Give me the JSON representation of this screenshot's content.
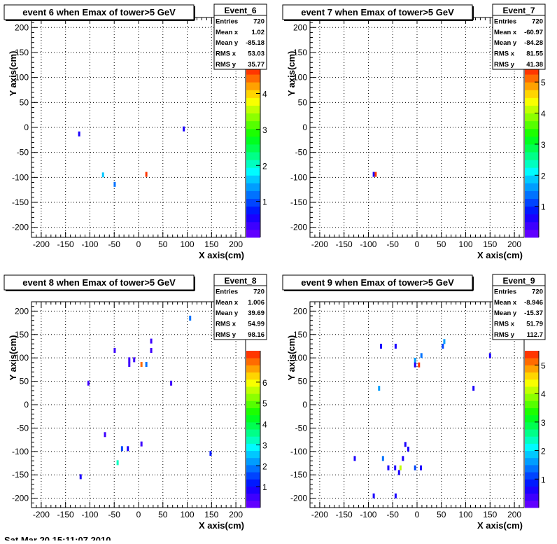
{
  "page": {
    "footer_text": "Sat Mar 20 15:11:07 2010"
  },
  "palette": [
    "#6100ff",
    "#3d00ff",
    "#1a00ff",
    "#0019ff",
    "#0044ff",
    "#0072ff",
    "#009dff",
    "#00c8ff",
    "#00fbff",
    "#00ffc0",
    "#00ff88",
    "#00ff50",
    "#00ff20",
    "#1cff00",
    "#55ff00",
    "#8cff00",
    "#c1ff00",
    "#f8ff00",
    "#ffd500",
    "#ffa100",
    "#ff6b00",
    "#ff3600"
  ],
  "chart_data": [
    {
      "type": "heatmap",
      "title": "event 6 when Emax of tower>5 GeV",
      "xlabel": "X axis(cm)",
      "ylabel": "Y axis(cm)",
      "xlim": [
        -220,
        220
      ],
      "ylim": [
        -220,
        220
      ],
      "x_ticks": [
        -200,
        -150,
        -100,
        -50,
        0,
        50,
        100,
        150,
        200
      ],
      "y_ticks": [
        -200,
        -150,
        -100,
        -50,
        0,
        50,
        100,
        150,
        200
      ],
      "grid": true,
      "zlim": [
        0,
        4.75
      ],
      "z_ticks": [
        1,
        2,
        3,
        4
      ],
      "stats": {
        "name": "Event_6",
        "rows": [
          {
            "label": "Entries",
            "value": "720"
          },
          {
            "label": "Mean x",
            "value": "1.02"
          },
          {
            "label": "Mean y",
            "value": "-85.18"
          },
          {
            "label": "RMS x",
            "value": "53.03"
          },
          {
            "label": "RMS y",
            "value": "35.77"
          }
        ]
      },
      "cells": [
        {
          "x": -122,
          "y": -13,
          "z": 0.5
        },
        {
          "x": -73,
          "y": -95,
          "z": 1.7
        },
        {
          "x": -49,
          "y": -114,
          "z": 1.1
        },
        {
          "x": 16,
          "y": -94,
          "z": 4.6
        },
        {
          "x": 93,
          "y": -3,
          "z": 0.5
        }
      ]
    },
    {
      "type": "heatmap",
      "title": "event 7 when Emax of tower>5 GeV",
      "xlabel": "X axis(cm)",
      "ylabel": "Y axis(cm)",
      "xlim": [
        -220,
        220
      ],
      "ylim": [
        -220,
        220
      ],
      "x_ticks": [
        -200,
        -150,
        -100,
        -50,
        0,
        50,
        100,
        150,
        200
      ],
      "y_ticks": [
        -200,
        -150,
        -100,
        -50,
        0,
        50,
        100,
        150,
        200
      ],
      "grid": true,
      "zlim": [
        0,
        5.5
      ],
      "z_ticks": [
        1,
        2,
        3,
        4,
        5
      ],
      "stats": {
        "name": "Event_7",
        "rows": [
          {
            "label": "Entries",
            "value": "720"
          },
          {
            "label": "Mean x",
            "value": "-60.97"
          },
          {
            "label": "Mean y",
            "value": "-84.28"
          },
          {
            "label": "RMS x",
            "value": "81.55"
          },
          {
            "label": "RMS y",
            "value": "41.38"
          }
        ]
      },
      "cells": [
        {
          "x": -89,
          "y": -94,
          "z": 0.5
        },
        {
          "x": -85,
          "y": -94,
          "z": 5.3
        }
      ]
    },
    {
      "type": "heatmap",
      "title": "event 8 when Emax of tower>5 GeV",
      "xlabel": "X axis(cm)",
      "ylabel": "Y axis(cm)",
      "xlim": [
        -220,
        220
      ],
      "ylim": [
        -220,
        220
      ],
      "x_ticks": [
        -200,
        -150,
        -100,
        -50,
        0,
        50,
        100,
        150,
        200
      ],
      "y_ticks": [
        -200,
        -150,
        -100,
        -50,
        0,
        50,
        100,
        150,
        200
      ],
      "grid": true,
      "zlim": [
        0,
        7.5
      ],
      "z_ticks": [
        1,
        2,
        3,
        4,
        5,
        6
      ],
      "stats": {
        "name": "Event_8",
        "rows": [
          {
            "label": "Entries",
            "value": "720"
          },
          {
            "label": "Mean x",
            "value": "1.006"
          },
          {
            "label": "Mean y",
            "value": "39.69"
          },
          {
            "label": "RMS x",
            "value": "54.99"
          },
          {
            "label": "RMS y",
            "value": "98.16"
          }
        ]
      },
      "cells": [
        {
          "x": 106,
          "y": 185,
          "z": 2.0
        },
        {
          "x": -49,
          "y": 116,
          "z": 0.5
        },
        {
          "x": 26,
          "y": 116,
          "z": 0.5
        },
        {
          "x": 26,
          "y": 136,
          "z": 0.5
        },
        {
          "x": -19,
          "y": 96,
          "z": 0.5
        },
        {
          "x": -19,
          "y": 86,
          "z": 0.5
        },
        {
          "x": -9,
          "y": 96,
          "z": 0.5
        },
        {
          "x": 6,
          "y": 86,
          "z": 7.0
        },
        {
          "x": 16,
          "y": 86,
          "z": 1.9
        },
        {
          "x": -103,
          "y": 46,
          "z": 0.5
        },
        {
          "x": 67,
          "y": 46,
          "z": 0.5
        },
        {
          "x": -69,
          "y": -64,
          "z": 0.5
        },
        {
          "x": 6,
          "y": -84,
          "z": 0.5
        },
        {
          "x": -34,
          "y": -94,
          "z": 1.7
        },
        {
          "x": -22,
          "y": -94,
          "z": 0.7
        },
        {
          "x": 148,
          "y": -104,
          "z": 1.3
        },
        {
          "x": -43,
          "y": -124,
          "z": 3.1
        },
        {
          "x": -119,
          "y": -154,
          "z": 0.7
        }
      ]
    },
    {
      "type": "heatmap",
      "title": "event 9 when Emax of tower>5 GeV",
      "xlabel": "X axis(cm)",
      "ylabel": "Y axis(cm)",
      "xlim": [
        -220,
        220
      ],
      "ylim": [
        -220,
        220
      ],
      "x_ticks": [
        -200,
        -150,
        -100,
        -50,
        0,
        50,
        100,
        150,
        200
      ],
      "y_ticks": [
        -200,
        -150,
        -100,
        -50,
        0,
        50,
        100,
        150,
        200
      ],
      "grid": true,
      "zlim": [
        0,
        5.5
      ],
      "z_ticks": [
        1,
        2,
        3,
        4,
        5
      ],
      "stats": {
        "name": "Event_9",
        "rows": [
          {
            "label": "Entries",
            "value": "720"
          },
          {
            "label": "Mean x",
            "value": "-8.946"
          },
          {
            "label": "Mean y",
            "value": "-15.37"
          },
          {
            "label": "RMS x",
            "value": "51.79"
          },
          {
            "label": "RMS y",
            "value": "112.7"
          }
        ]
      },
      "cells": [
        {
          "x": 56,
          "y": 135,
          "z": 1.5
        },
        {
          "x": 53,
          "y": 125,
          "z": 1.2
        },
        {
          "x": -74,
          "y": 125,
          "z": 0.5
        },
        {
          "x": -44,
          "y": 125,
          "z": 0.5
        },
        {
          "x": 150,
          "y": 105,
          "z": 0.7
        },
        {
          "x": 9,
          "y": 105,
          "z": 1.4
        },
        {
          "x": -4,
          "y": 95,
          "z": 1.5
        },
        {
          "x": -4,
          "y": 85,
          "z": 0.7
        },
        {
          "x": 4,
          "y": 85,
          "z": 5.3
        },
        {
          "x": -78,
          "y": 35,
          "z": 1.6
        },
        {
          "x": 116,
          "y": 35,
          "z": 0.5
        },
        {
          "x": -24,
          "y": -85,
          "z": 0.7
        },
        {
          "x": -18,
          "y": -95,
          "z": 0.5
        },
        {
          "x": -128,
          "y": -115,
          "z": 0.5
        },
        {
          "x": -70,
          "y": -115,
          "z": 1.4
        },
        {
          "x": -29,
          "y": -115,
          "z": 0.5
        },
        {
          "x": -59,
          "y": -135,
          "z": 0.5
        },
        {
          "x": -45,
          "y": -135,
          "z": 0.7
        },
        {
          "x": -34,
          "y": -135,
          "z": 4.0
        },
        {
          "x": -4,
          "y": -135,
          "z": 1.1
        },
        {
          "x": 8,
          "y": -135,
          "z": 0.7
        },
        {
          "x": -37,
          "y": -145,
          "z": 0.5
        },
        {
          "x": -89,
          "y": -195,
          "z": 0.5
        },
        {
          "x": -44,
          "y": -195,
          "z": 0.5
        }
      ]
    }
  ]
}
